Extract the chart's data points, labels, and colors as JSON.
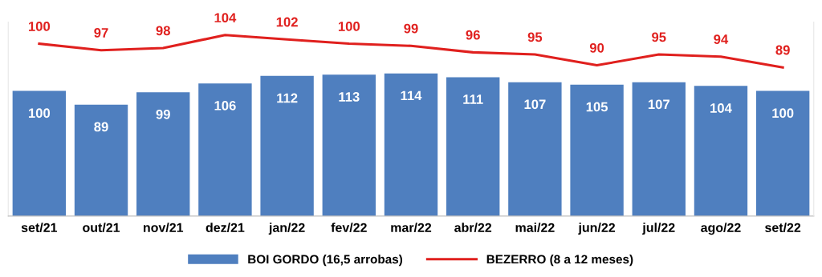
{
  "chart_data": {
    "type": "bar",
    "categories": [
      "set/21",
      "out/21",
      "nov/21",
      "dez/21",
      "jan/22",
      "fev/22",
      "mar/22",
      "abr/22",
      "mai/22",
      "jun/22",
      "jul/22",
      "ago/22",
      "set/22"
    ],
    "series": [
      {
        "name": "BOI GORDO (16,5 arrobas)",
        "color": "#4f7fbf",
        "values": [
          100,
          89,
          99,
          106,
          112,
          113,
          114,
          111,
          107,
          105,
          107,
          104,
          100
        ]
      },
      {
        "name": "BEZERRO (8 a 12 meses)",
        "type": "line",
        "axis": "y2",
        "color": "#e0201e",
        "values": [
          100,
          97,
          98,
          104,
          102,
          100,
          99,
          96,
          95,
          90,
          95,
          94,
          89
        ]
      }
    ],
    "ylim": [
      0,
      155
    ],
    "y2lim": [
      20,
      110
    ],
    "tick_labels": "x",
    "data_labels": true,
    "legend": "bottom",
    "grid": false,
    "marker": "none",
    "line_style": "solid"
  }
}
